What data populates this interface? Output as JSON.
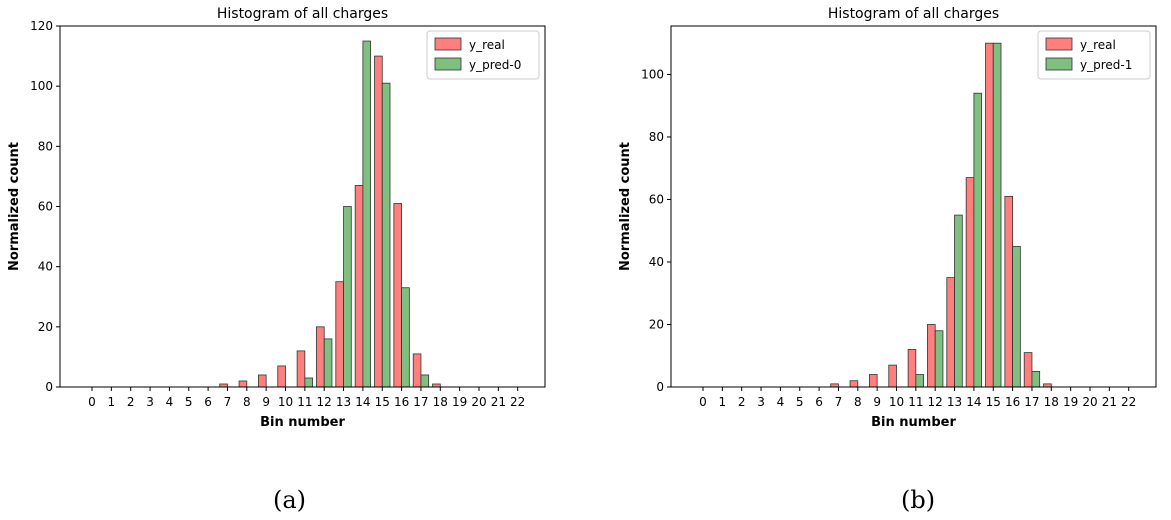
{
  "chart_data": [
    {
      "type": "bar",
      "title": "Histogram of all charges",
      "xlabel": "Bin number",
      "ylabel": "Normalized count",
      "categories": [
        "0",
        "1",
        "2",
        "3",
        "4",
        "5",
        "6",
        "7",
        "8",
        "9",
        "10",
        "11",
        "12",
        "13",
        "14",
        "15",
        "16",
        "17",
        "18",
        "19",
        "20",
        "21",
        "22"
      ],
      "ylim": [
        0,
        120
      ],
      "yticks": [
        0,
        20,
        40,
        60,
        80,
        100,
        120
      ],
      "grid": false,
      "legend_position": "top-right",
      "series": [
        {
          "name": "y_real",
          "color": "#ff7f7f",
          "values": [
            0,
            0,
            0,
            0,
            0,
            0,
            0,
            1,
            2,
            4,
            7,
            12,
            20,
            35,
            67,
            110,
            61,
            11,
            1,
            0,
            0,
            0,
            0
          ]
        },
        {
          "name": "y_pred-0",
          "color": "#7fbf7f",
          "values": [
            0,
            0,
            0,
            0,
            0,
            0,
            0,
            0,
            0,
            0,
            0,
            3,
            16,
            60,
            115,
            101,
            33,
            4,
            0,
            0,
            0,
            0,
            0
          ]
        }
      ]
    },
    {
      "type": "bar",
      "title": "Histogram of all charges",
      "xlabel": "Bin number",
      "ylabel": "Normalized count",
      "categories": [
        "0",
        "1",
        "2",
        "3",
        "4",
        "5",
        "6",
        "7",
        "8",
        "9",
        "10",
        "11",
        "12",
        "13",
        "14",
        "15",
        "16",
        "17",
        "18",
        "19",
        "20",
        "21",
        "22"
      ],
      "ylim": [
        0,
        115.5
      ],
      "yticks": [
        0,
        20,
        40,
        60,
        80,
        100
      ],
      "grid": false,
      "legend_position": "top-right",
      "series": [
        {
          "name": "y_real",
          "color": "#ff7f7f",
          "values": [
            0,
            0,
            0,
            0,
            0,
            0,
            0,
            1,
            2,
            4,
            7,
            12,
            20,
            35,
            67,
            110,
            61,
            11,
            1,
            0,
            0,
            0,
            0
          ]
        },
        {
          "name": "y_pred-1",
          "color": "#7fbf7f",
          "values": [
            0,
            0,
            0,
            0,
            0,
            0,
            0,
            0,
            0,
            0,
            0,
            4,
            18,
            55,
            94,
            110,
            45,
            5,
            0,
            0,
            0,
            0,
            0
          ]
        }
      ]
    }
  ],
  "captions": [
    "(a)",
    "(b)"
  ]
}
